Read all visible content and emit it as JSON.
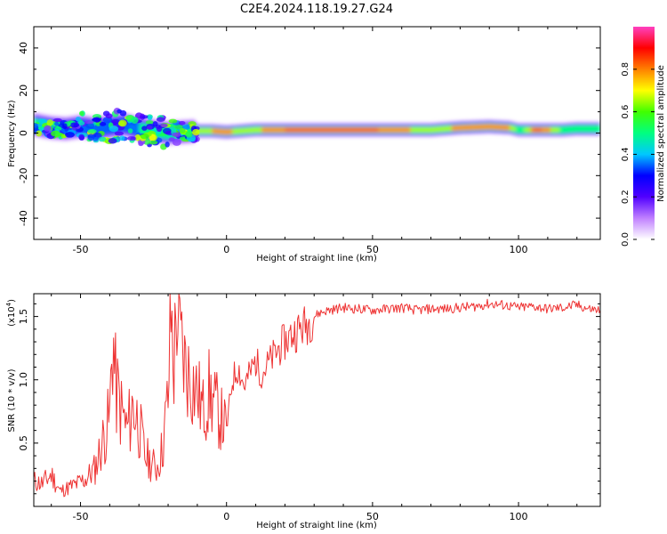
{
  "title": "C2E4.2024.118.19.27.G24",
  "chart_data": [
    {
      "type": "heatmap",
      "xlabel": "Height of straight line (km)",
      "ylabel": "Frequency (Hz)",
      "xlim": [
        -66,
        128
      ],
      "ylim": [
        -50,
        50
      ],
      "xticks": [
        -50,
        0,
        50,
        100
      ],
      "xtick_labels": [
        "-50",
        "0",
        "50",
        "100"
      ],
      "yticks": [
        -40,
        -20,
        0,
        20,
        40
      ],
      "ytick_labels": [
        "-40",
        "-20",
        "0",
        "20",
        "40"
      ],
      "colorbar": {
        "label": "Normalized spectral amplitude",
        "range": [
          0,
          1
        ],
        "ticks": [
          0.0,
          0.2,
          0.4,
          0.6,
          0.8
        ],
        "tick_labels": [
          "0.0",
          "0.2",
          "0.4",
          "0.6",
          "0.8"
        ],
        "colormap": [
          "#ffffff",
          "#c080ff",
          "#5000ff",
          "#0000ff",
          "#00c8ff",
          "#00ff80",
          "#40ff00",
          "#ffff00",
          "#ff8000",
          "#ff0000",
          "#ff40c0"
        ]
      },
      "ridge": {
        "x": [
          -66,
          -60,
          -55,
          -50,
          -45,
          -40,
          -35,
          -30,
          -25,
          -20,
          -15,
          -10,
          -5,
          0,
          5,
          10,
          15,
          20,
          30,
          40,
          50,
          60,
          70,
          80,
          90,
          97,
          100,
          105,
          110,
          115,
          120,
          128
        ],
        "y": [
          4,
          2.5,
          2,
          3,
          2,
          3,
          4,
          2,
          1,
          0,
          0.5,
          1,
          1,
          0.5,
          1,
          1.5,
          1.5,
          1.5,
          1.5,
          1.5,
          1.5,
          1.5,
          1.5,
          2.5,
          3,
          2.5,
          1.5,
          1.5,
          1.5,
          1.5,
          2,
          2
        ],
        "amplitude": [
          0.5,
          0.5,
          0.45,
          0.5,
          0.45,
          0.4,
          0.45,
          0.5,
          0.5,
          0.5,
          0.55,
          0.7,
          0.8,
          0.95,
          0.7,
          0.75,
          0.9,
          0.92,
          0.95,
          0.95,
          0.95,
          0.85,
          0.7,
          0.85,
          0.9,
          0.85,
          0.55,
          0.95,
          0.9,
          0.6,
          0.55,
          0.55
        ]
      }
    },
    {
      "type": "line",
      "xlabel": "Height of straight line (km)",
      "ylabel": "SNR (10 * v/v)",
      "y_multiplier_label": "(x10",
      "y_multiplier_exp": "4",
      "xlim": [
        -66,
        128
      ],
      "ylim": [
        0,
        16800
      ],
      "xticks": [
        -50,
        0,
        50,
        100
      ],
      "xtick_labels": [
        "-50",
        "0",
        "50",
        "100"
      ],
      "yticks": [
        5000,
        10000,
        15000
      ],
      "ytick_labels": [
        "0.5",
        "1.0",
        "1.5"
      ],
      "color": "#ee3333",
      "series": [
        {
          "x": [
            -66,
            -63,
            -60,
            -57,
            -54,
            -51,
            -48,
            -45,
            -42,
            -40,
            -39,
            -38,
            -36,
            -34,
            -32,
            -30,
            -28,
            -26,
            -24,
            -22,
            -20,
            -19,
            -18,
            -17,
            -16,
            -15,
            -14,
            -12,
            -10,
            -8,
            -6,
            -4,
            -2,
            0,
            2,
            4,
            6,
            8,
            10,
            12,
            15,
            18,
            20,
            22,
            25,
            28,
            30,
            32,
            35,
            40,
            45,
            50,
            55,
            60,
            65,
            70,
            75,
            80,
            85,
            90,
            95,
            100,
            105,
            110,
            115,
            120,
            124,
            128
          ],
          "y": [
            2000,
            1800,
            2500,
            1200,
            1500,
            1800,
            2200,
            3000,
            5500,
            7000,
            13800,
            9500,
            7500,
            6000,
            8000,
            6500,
            4000,
            3500,
            3000,
            4500,
            8500,
            15200,
            11000,
            16000,
            13000,
            12000,
            11000,
            10000,
            9000,
            7500,
            9000,
            8000,
            7000,
            6000,
            10000,
            11000,
            9500,
            10500,
            11500,
            10500,
            11500,
            12500,
            13000,
            13500,
            14000,
            14500,
            15000,
            15300,
            15500,
            15700,
            15600,
            15500,
            15600,
            15700,
            15500,
            15600,
            15600,
            15700,
            15800,
            16000,
            15900,
            15700,
            15800,
            15600,
            15700,
            15900,
            15600,
            15500
          ]
        }
      ]
    }
  ]
}
